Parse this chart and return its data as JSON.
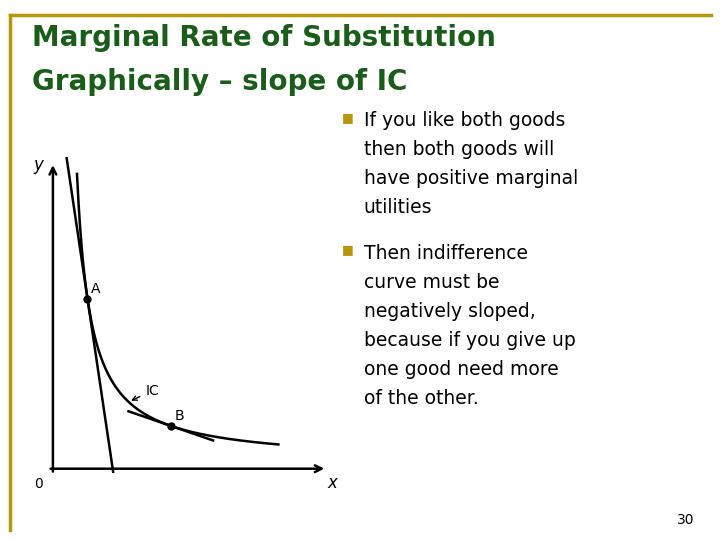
{
  "title_line1": "Marginal Rate of Substitution",
  "title_line2": "Graphically – slope of IC",
  "title_color": "#1a5c1a",
  "title_fontsize": 20,
  "border_color": "#b8960c",
  "background_color": "#ffffff",
  "bullet_color": "#b8960c",
  "text_color": "#000000",
  "text_fontsize": 13.5,
  "page_number": "30",
  "bullet1_lines": [
    "If you like both goods",
    "then both goods will",
    "have positive marginal",
    "utilities"
  ],
  "bullet2_lines": [
    "Then indifference",
    "curve must be",
    "negatively sloped,",
    "because if you give up",
    "one good need more",
    "of the other."
  ]
}
